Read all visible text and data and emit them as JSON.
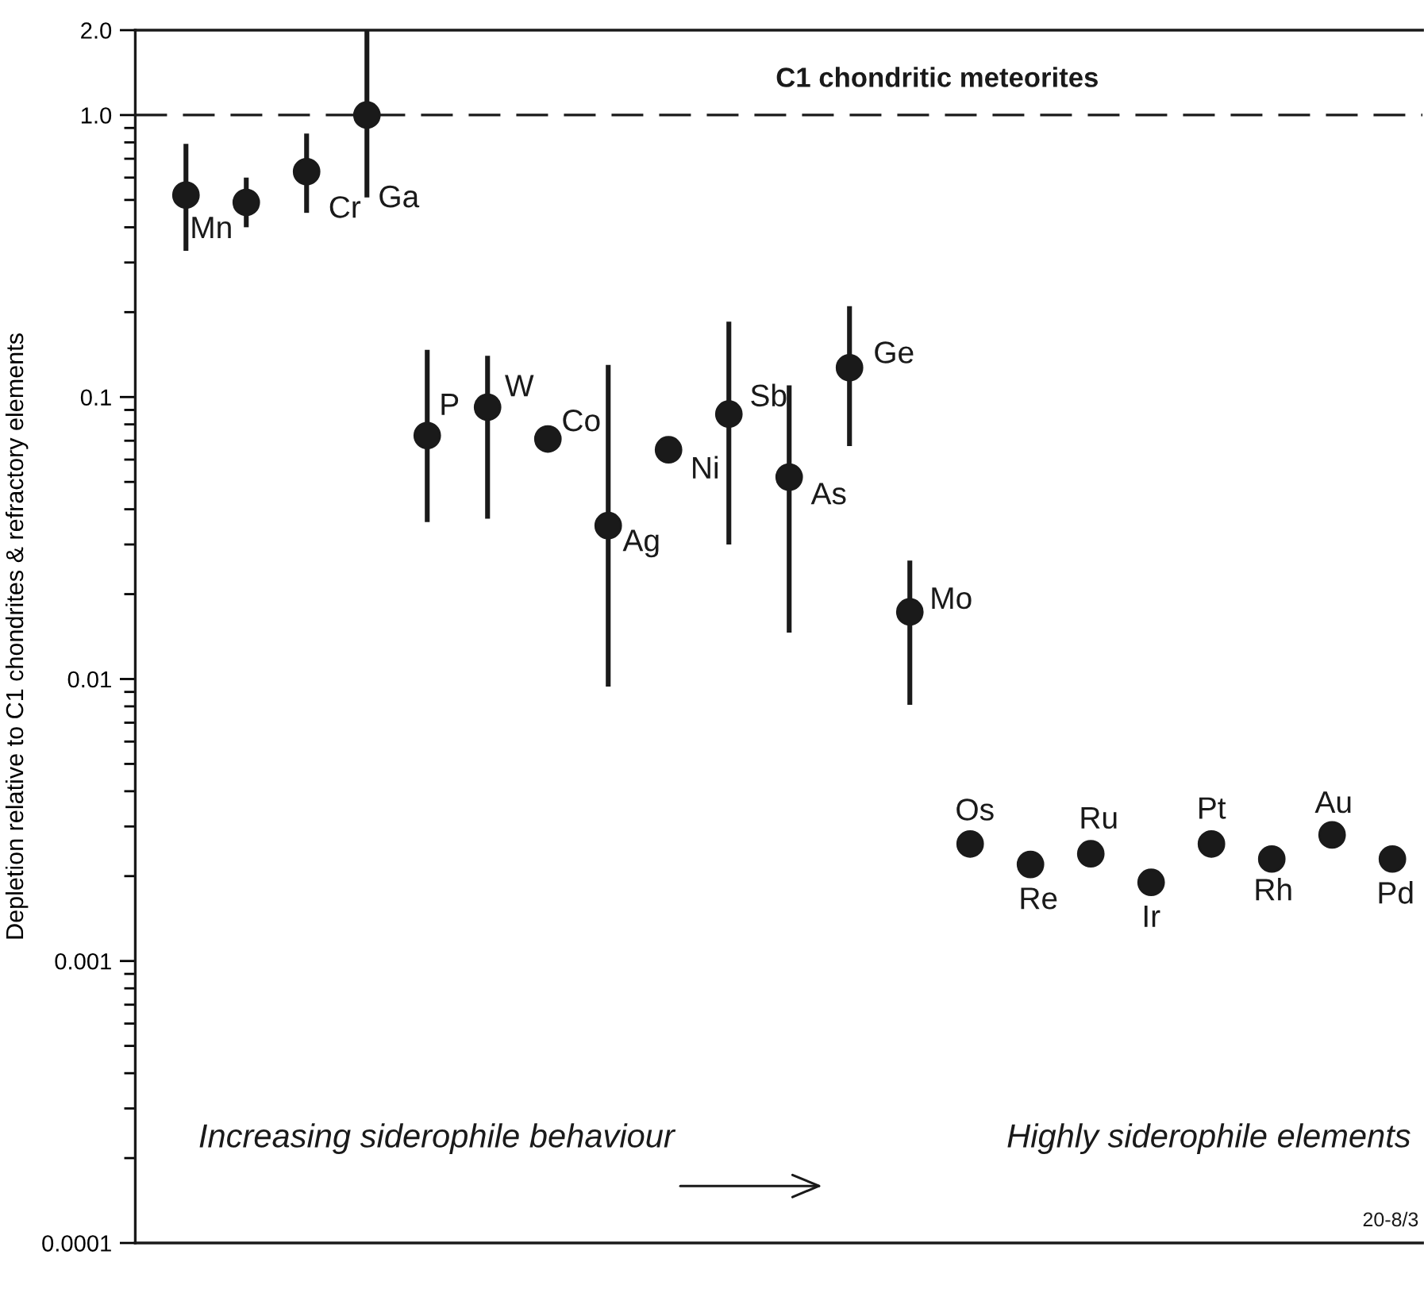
{
  "chart_data": {
    "type": "scatter",
    "ylabel": "Depletion relative to C1 chondrites & refractory elements",
    "categories": [
      null,
      null,
      null,
      null,
      null,
      null,
      null,
      null,
      null,
      null,
      null,
      null,
      null,
      null,
      null,
      null,
      null,
      null,
      null,
      null,
      null
    ],
    "log": "y",
    "ylim": [
      0.0001,
      2.0
    ],
    "yticks": [
      0.0001,
      0.001,
      0.01,
      0.1,
      {
        "value": 1.0,
        "label": "1.0"
      },
      {
        "value": 2.0,
        "label": "2.0"
      }
    ],
    "tick_labels": "y",
    "grid": false,
    "marker": "circle",
    "ref_lines": [
      {
        "axis": "y",
        "value": 1.0,
        "label": "C1 chondritic meteorites",
        "line_style": "dashed",
        "color": "#1a1a1a"
      }
    ],
    "annotations": [
      "Increasing siderophile behaviour",
      "Highly siderophile elements",
      "20-8/3"
    ],
    "series": [
      {
        "name": "Mn",
        "color": "#1a1a1a",
        "values": [
          0.52,
          null,
          null,
          null,
          null,
          null,
          null,
          null,
          null,
          null,
          null,
          null,
          null,
          null,
          null,
          null,
          null,
          null,
          null,
          null,
          null
        ],
        "errors": [
          [
            0.33,
            0.79
          ],
          null,
          null,
          null,
          null,
          null,
          null,
          null,
          null,
          null,
          null,
          null,
          null,
          null,
          null,
          null,
          null,
          null,
          null,
          null,
          null
        ]
      },
      {
        "color": "#1a1a1a",
        "values": [
          null,
          0.49,
          null,
          null,
          null,
          null,
          null,
          null,
          null,
          null,
          null,
          null,
          null,
          null,
          null,
          null,
          null,
          null,
          null,
          null,
          null
        ],
        "errors": [
          null,
          [
            0.4,
            0.6
          ],
          null,
          null,
          null,
          null,
          null,
          null,
          null,
          null,
          null,
          null,
          null,
          null,
          null,
          null,
          null,
          null,
          null,
          null,
          null
        ]
      },
      {
        "name": "Cr",
        "color": "#1a1a1a",
        "values": [
          null,
          null,
          0.63,
          null,
          null,
          null,
          null,
          null,
          null,
          null,
          null,
          null,
          null,
          null,
          null,
          null,
          null,
          null,
          null,
          null,
          null
        ],
        "errors": [
          null,
          null,
          [
            0.45,
            0.86
          ],
          null,
          null,
          null,
          null,
          null,
          null,
          null,
          null,
          null,
          null,
          null,
          null,
          null,
          null,
          null,
          null,
          null,
          null
        ]
      },
      {
        "name": "Ga",
        "color": "#1a1a1a",
        "values": [
          null,
          null,
          null,
          1.0,
          null,
          null,
          null,
          null,
          null,
          null,
          null,
          null,
          null,
          null,
          null,
          null,
          null,
          null,
          null,
          null,
          null
        ],
        "errors": [
          null,
          null,
          null,
          [
            0.51,
            2.0
          ],
          null,
          null,
          null,
          null,
          null,
          null,
          null,
          null,
          null,
          null,
          null,
          null,
          null,
          null,
          null,
          null,
          null
        ]
      },
      {
        "name": "P",
        "color": "#1a1a1a",
        "values": [
          null,
          null,
          null,
          null,
          0.073,
          null,
          null,
          null,
          null,
          null,
          null,
          null,
          null,
          null,
          null,
          null,
          null,
          null,
          null,
          null,
          null
        ],
        "errors": [
          null,
          null,
          null,
          null,
          [
            0.036,
            0.147
          ],
          null,
          null,
          null,
          null,
          null,
          null,
          null,
          null,
          null,
          null,
          null,
          null,
          null,
          null,
          null,
          null
        ]
      },
      {
        "name": "W",
        "color": "#1a1a1a",
        "values": [
          null,
          null,
          null,
          null,
          null,
          0.092,
          null,
          null,
          null,
          null,
          null,
          null,
          null,
          null,
          null,
          null,
          null,
          null,
          null,
          null,
          null
        ],
        "errors": [
          null,
          null,
          null,
          null,
          null,
          [
            0.037,
            0.14
          ],
          null,
          null,
          null,
          null,
          null,
          null,
          null,
          null,
          null,
          null,
          null,
          null,
          null,
          null,
          null
        ]
      },
      {
        "name": "Co",
        "color": "#1a1a1a",
        "values": [
          null,
          null,
          null,
          null,
          null,
          null,
          0.071,
          null,
          null,
          null,
          null,
          null,
          null,
          null,
          null,
          null,
          null,
          null,
          null,
          null,
          null
        ]
      },
      {
        "name": "Ag",
        "color": "#1a1a1a",
        "values": [
          null,
          null,
          null,
          null,
          null,
          null,
          null,
          0.035,
          null,
          null,
          null,
          null,
          null,
          null,
          null,
          null,
          null,
          null,
          null,
          null,
          null
        ],
        "errors": [
          null,
          null,
          null,
          null,
          null,
          null,
          null,
          [
            0.0094,
            0.13
          ],
          null,
          null,
          null,
          null,
          null,
          null,
          null,
          null,
          null,
          null,
          null,
          null,
          null
        ]
      },
      {
        "name": "Ni",
        "color": "#1a1a1a",
        "values": [
          null,
          null,
          null,
          null,
          null,
          null,
          null,
          null,
          0.065,
          null,
          null,
          null,
          null,
          null,
          null,
          null,
          null,
          null,
          null,
          null,
          null
        ]
      },
      {
        "name": "Sb",
        "color": "#1a1a1a",
        "values": [
          null,
          null,
          null,
          null,
          null,
          null,
          null,
          null,
          null,
          0.087,
          null,
          null,
          null,
          null,
          null,
          null,
          null,
          null,
          null,
          null,
          null
        ],
        "errors": [
          null,
          null,
          null,
          null,
          null,
          null,
          null,
          null,
          null,
          [
            0.03,
            0.185
          ],
          null,
          null,
          null,
          null,
          null,
          null,
          null,
          null,
          null,
          null,
          null
        ]
      },
      {
        "name": "As",
        "color": "#1a1a1a",
        "values": [
          null,
          null,
          null,
          null,
          null,
          null,
          null,
          null,
          null,
          null,
          0.052,
          null,
          null,
          null,
          null,
          null,
          null,
          null,
          null,
          null,
          null
        ],
        "errors": [
          null,
          null,
          null,
          null,
          null,
          null,
          null,
          null,
          null,
          null,
          [
            0.0146,
            0.11
          ],
          null,
          null,
          null,
          null,
          null,
          null,
          null,
          null,
          null,
          null
        ]
      },
      {
        "name": "Ge",
        "color": "#1a1a1a",
        "values": [
          null,
          null,
          null,
          null,
          null,
          null,
          null,
          null,
          null,
          null,
          null,
          0.127,
          null,
          null,
          null,
          null,
          null,
          null,
          null,
          null,
          null
        ],
        "errors": [
          null,
          null,
          null,
          null,
          null,
          null,
          null,
          null,
          null,
          null,
          null,
          [
            0.067,
            0.21
          ],
          null,
          null,
          null,
          null,
          null,
          null,
          null,
          null,
          null
        ]
      },
      {
        "name": "Mo",
        "color": "#1a1a1a",
        "values": [
          null,
          null,
          null,
          null,
          null,
          null,
          null,
          null,
          null,
          null,
          null,
          null,
          0.0173,
          null,
          null,
          null,
          null,
          null,
          null,
          null,
          null
        ],
        "errors": [
          null,
          null,
          null,
          null,
          null,
          null,
          null,
          null,
          null,
          null,
          null,
          null,
          [
            0.0081,
            0.0263
          ],
          null,
          null,
          null,
          null,
          null,
          null,
          null,
          null
        ]
      },
      {
        "name": "Os",
        "color": "#1a1a1a",
        "values": [
          null,
          null,
          null,
          null,
          null,
          null,
          null,
          null,
          null,
          null,
          null,
          null,
          null,
          0.0026,
          null,
          null,
          null,
          null,
          null,
          null,
          null
        ]
      },
      {
        "name": "Re",
        "color": "#1a1a1a",
        "values": [
          null,
          null,
          null,
          null,
          null,
          null,
          null,
          null,
          null,
          null,
          null,
          null,
          null,
          null,
          0.0022,
          null,
          null,
          null,
          null,
          null,
          null
        ]
      },
      {
        "name": "Ru",
        "color": "#1a1a1a",
        "values": [
          null,
          null,
          null,
          null,
          null,
          null,
          null,
          null,
          null,
          null,
          null,
          null,
          null,
          null,
          null,
          0.0024,
          null,
          null,
          null,
          null,
          null
        ]
      },
      {
        "name": "Ir",
        "color": "#1a1a1a",
        "values": [
          null,
          null,
          null,
          null,
          null,
          null,
          null,
          null,
          null,
          null,
          null,
          null,
          null,
          null,
          null,
          null,
          0.0019,
          null,
          null,
          null,
          null
        ]
      },
      {
        "name": "Pt",
        "color": "#1a1a1a",
        "values": [
          null,
          null,
          null,
          null,
          null,
          null,
          null,
          null,
          null,
          null,
          null,
          null,
          null,
          null,
          null,
          null,
          null,
          0.0026,
          null,
          null,
          null
        ]
      },
      {
        "name": "Rh",
        "color": "#1a1a1a",
        "values": [
          null,
          null,
          null,
          null,
          null,
          null,
          null,
          null,
          null,
          null,
          null,
          null,
          null,
          null,
          null,
          null,
          null,
          null,
          0.0023,
          null,
          null
        ]
      },
      {
        "name": "Au",
        "color": "#1a1a1a",
        "values": [
          null,
          null,
          null,
          null,
          null,
          null,
          null,
          null,
          null,
          null,
          null,
          null,
          null,
          null,
          null,
          null,
          null,
          null,
          null,
          0.0028,
          null
        ]
      },
      {
        "name": "Pd",
        "color": "#1a1a1a",
        "values": [
          null,
          null,
          null,
          null,
          null,
          null,
          null,
          null,
          null,
          null,
          null,
          null,
          null,
          null,
          null,
          null,
          null,
          null,
          null,
          null,
          0.0023
        ]
      }
    ]
  }
}
